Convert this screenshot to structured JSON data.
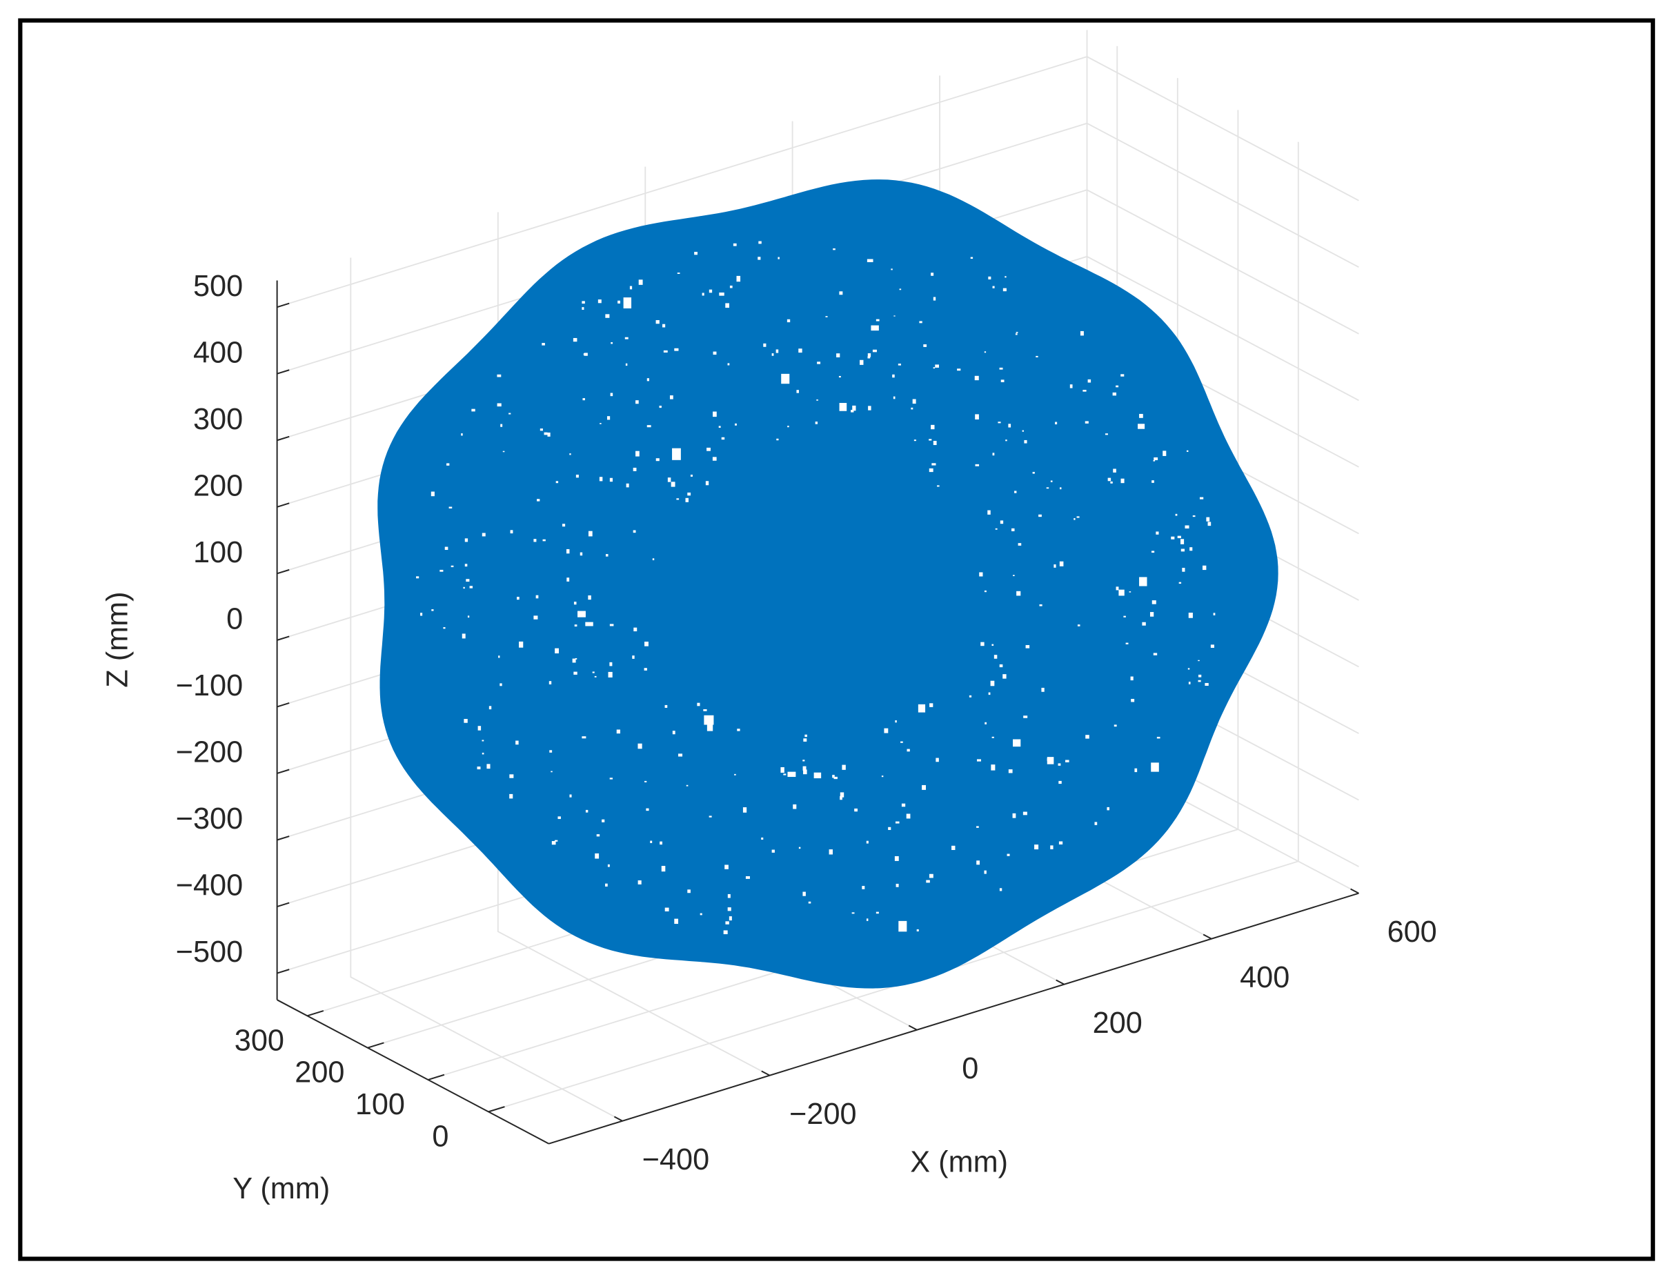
{
  "chart_data": {
    "type": "scatter3d",
    "xlabel": "X (mm)",
    "ylabel": "Y (mm)",
    "zlabel": "Z (mm)",
    "color": "#0072bd",
    "grid": true,
    "xlim": [
      -500,
      600
    ],
    "ylim": [
      -100,
      350
    ],
    "zlim": [
      -540,
      540
    ],
    "xticks": [
      {
        "value": -400,
        "label": "−400"
      },
      {
        "value": -200,
        "label": "−200"
      },
      0,
      200,
      400,
      600
    ],
    "yticks": [
      0,
      100,
      200,
      300
    ],
    "zticks": [
      {
        "value": -500,
        "label": "−500"
      },
      {
        "value": -400,
        "label": "−400"
      },
      {
        "value": -300,
        "label": "−300"
      },
      {
        "value": -200,
        "label": "−200"
      },
      {
        "value": -100,
        "label": "−100"
      },
      0,
      100,
      200,
      300,
      400,
      500
    ]
  }
}
